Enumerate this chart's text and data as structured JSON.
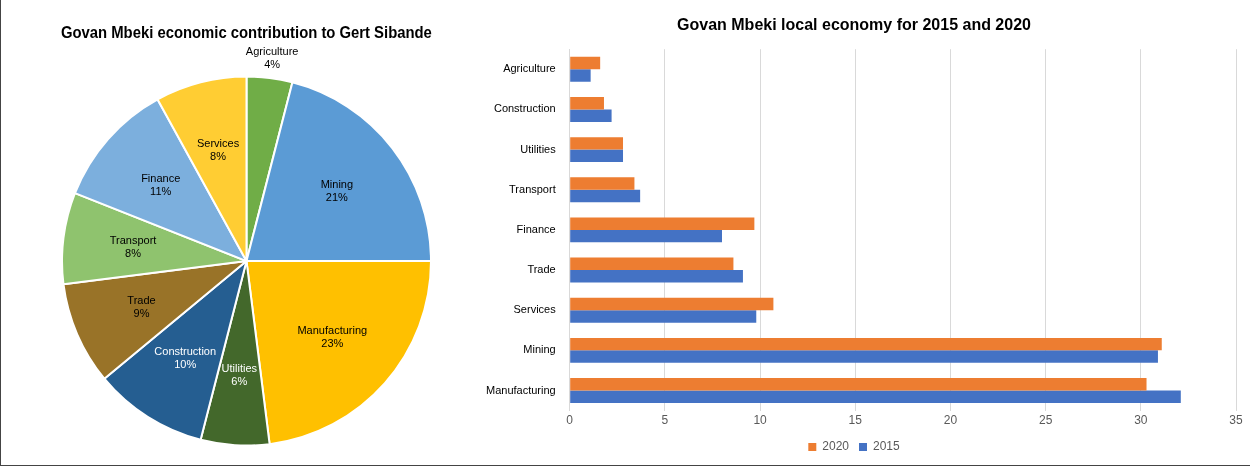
{
  "chart_data": [
    {
      "type": "pie",
      "title": "Govan Mbeki economic contribution to Gert Sibande",
      "categories": [
        "Agriculture",
        "Mining",
        "Manufacturing",
        "Utilities",
        "Construction",
        "Trade",
        "Transport",
        "Finance",
        "Services"
      ],
      "values": [
        4,
        21,
        23,
        6,
        10,
        9,
        8,
        11,
        8
      ],
      "value_labels": [
        "4%",
        "21%",
        "23%",
        "6%",
        "10%",
        "9%",
        "8%",
        "11%",
        "8%"
      ],
      "colors": [
        "#70ad47",
        "#5b9bd5",
        "#ffc000",
        "#43682b",
        "#255e91",
        "#997328",
        "#8fc36e",
        "#7cafdd",
        "#ffcd33"
      ],
      "legend": false
    },
    {
      "type": "bar",
      "orientation": "horizontal",
      "title": "Govan Mbeki local economy for 2015 and 2020",
      "categories": [
        "Agriculture",
        "Construction",
        "Utilities",
        "Transport",
        "Finance",
        "Trade",
        "Services",
        "Mining",
        "Manufacturing"
      ],
      "series": [
        {
          "name": "2020",
          "color": "#ed7d31",
          "values": [
            1.6,
            1.8,
            2.8,
            3.4,
            9.7,
            8.6,
            10.7,
            31.1,
            30.3
          ]
        },
        {
          "name": "2015",
          "color": "#4472c4",
          "values": [
            1.1,
            2.2,
            2.8,
            3.7,
            8.0,
            9.1,
            9.8,
            30.9,
            32.1
          ]
        }
      ],
      "xlim": [
        0,
        35
      ],
      "xticks": [
        0,
        5,
        10,
        15,
        20,
        25,
        30,
        35
      ],
      "grid": "x",
      "legend": "bottom"
    }
  ]
}
